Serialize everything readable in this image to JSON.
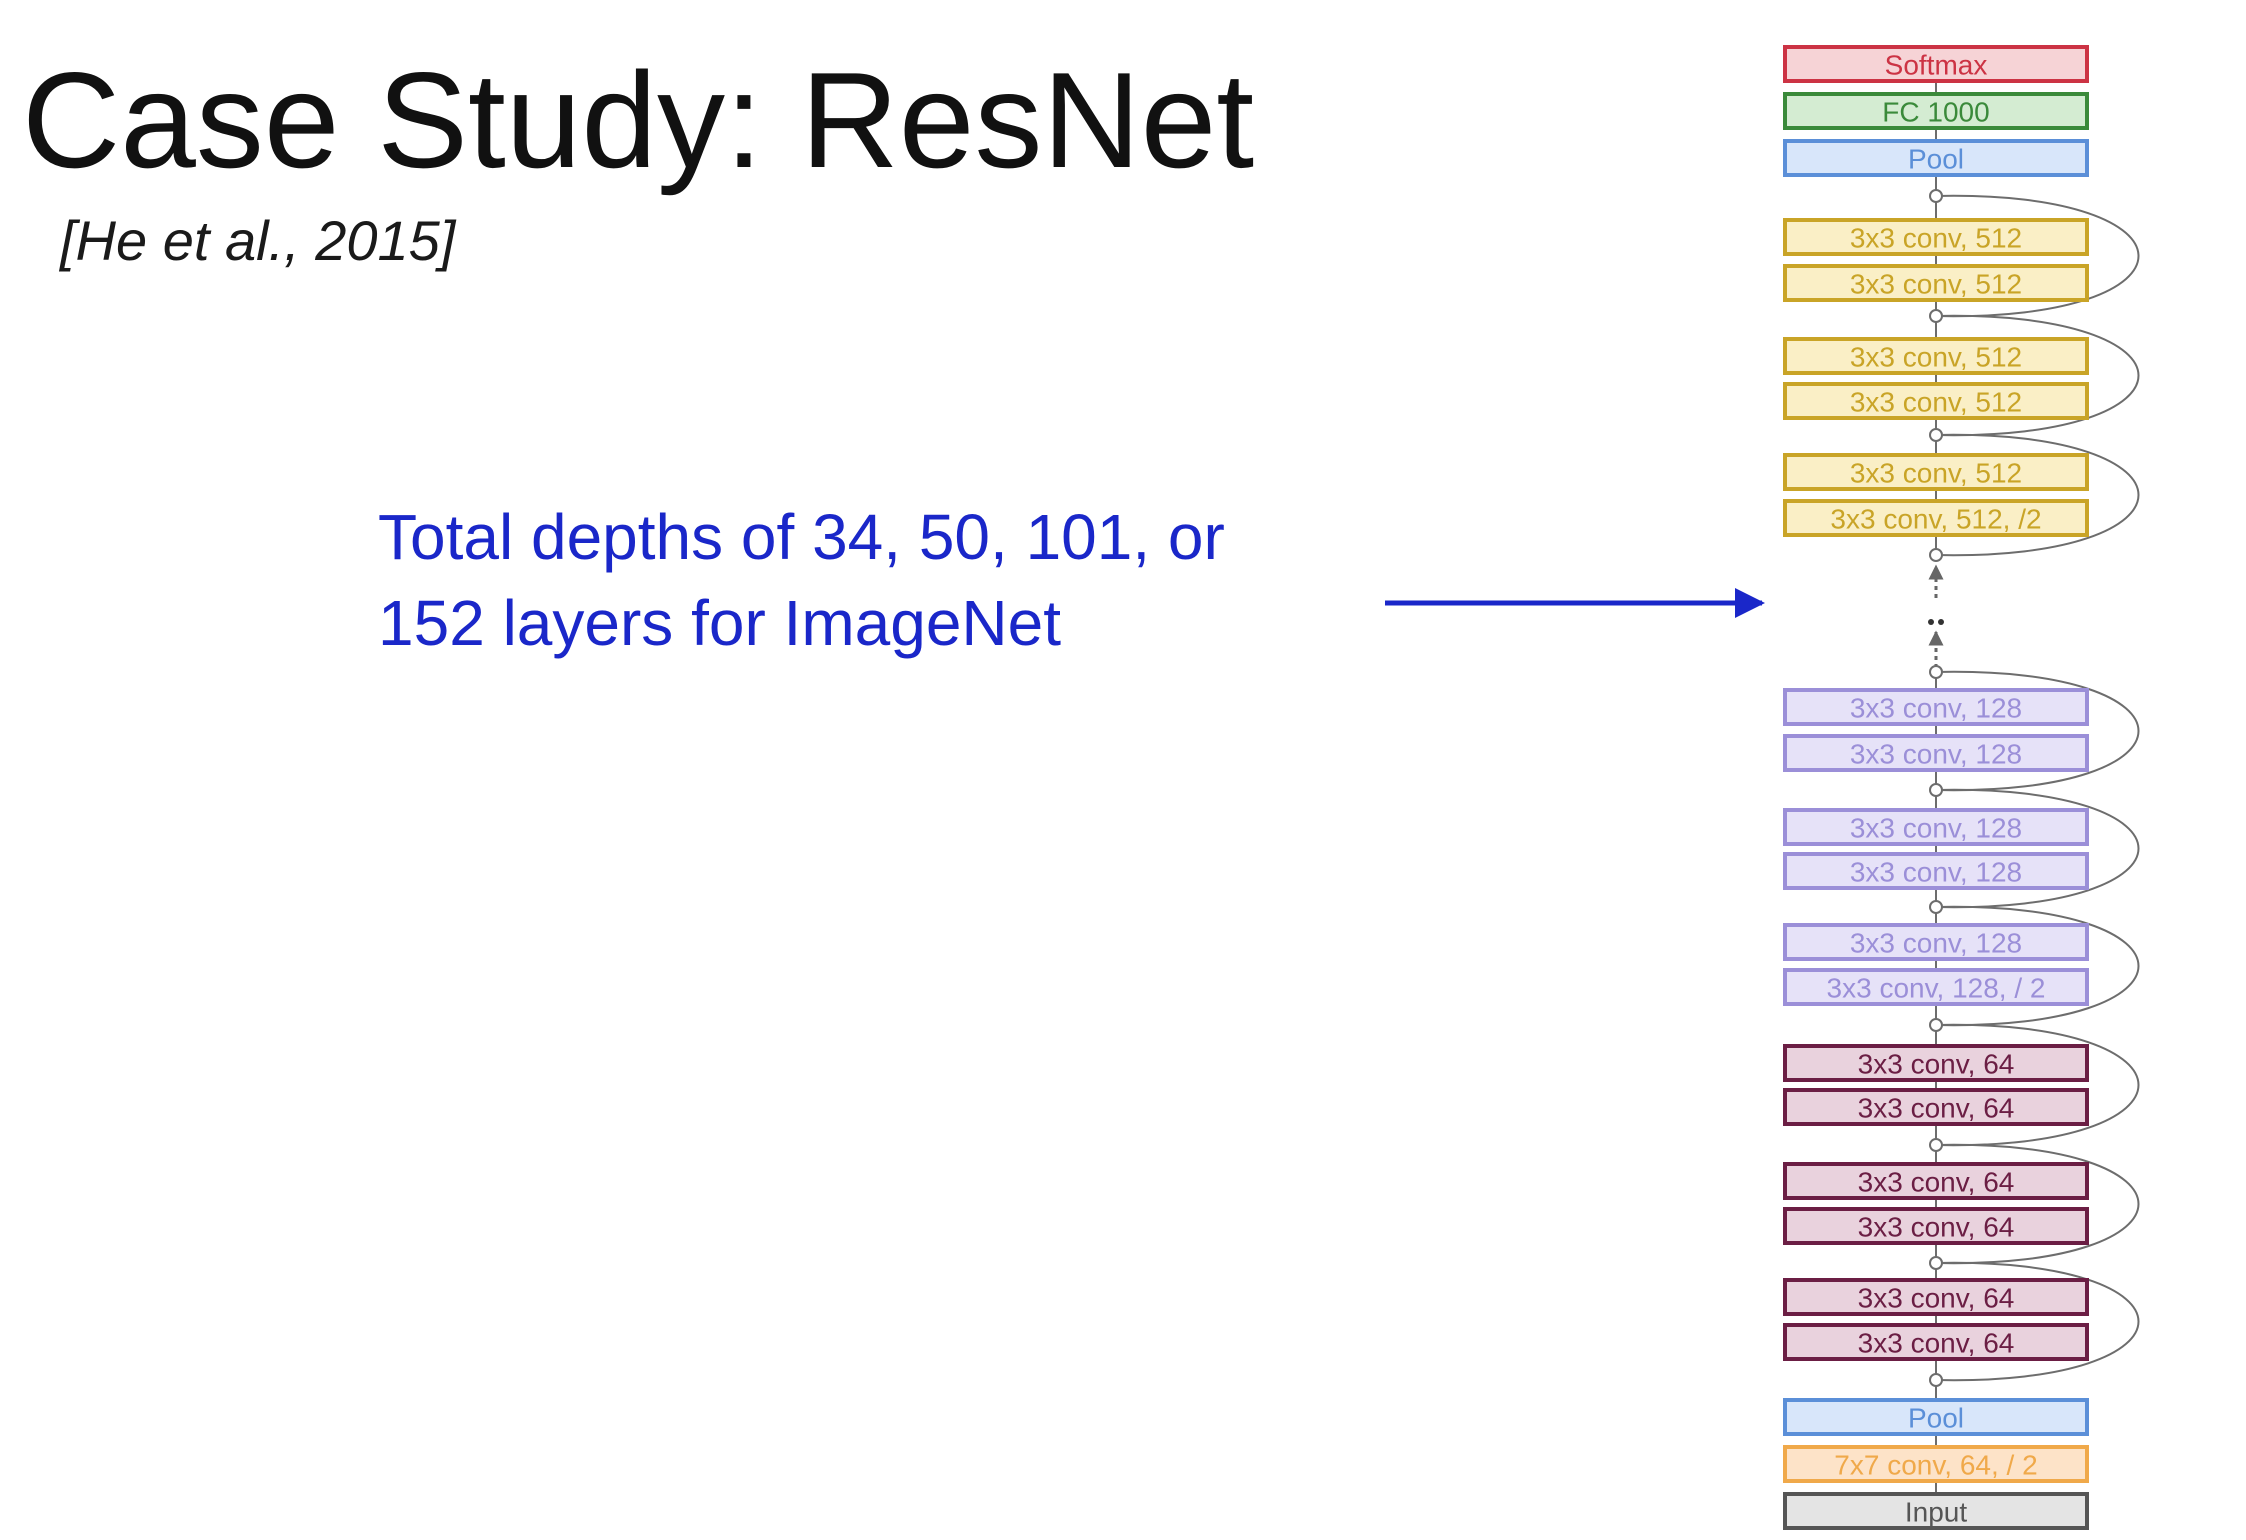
{
  "slide": {
    "title": "Case Study: ResNet",
    "citation": "[He et al., 2015]",
    "annotation_line1": "Total depths of 34, 50, 101, or",
    "annotation_line2": "152 layers for ImageNet"
  },
  "colors": {
    "annotation": "#1a27c9",
    "softmax": "#cc3344",
    "fc": "#3a8a3a",
    "pool": "#5b8fd8",
    "conv512": "#c9a427",
    "conv128": "#9b8fd8",
    "conv64": "#6b1e44",
    "conv7x7": "#f0a94a",
    "input": "#555555"
  },
  "layers": [
    {
      "label": "Softmax",
      "style": "softmax"
    },
    {
      "label": "FC 1000",
      "style": "fc"
    },
    {
      "label": "Pool",
      "style": "pool"
    },
    {
      "label": "3x3 conv, 512",
      "style": "conv512"
    },
    {
      "label": "3x3 conv, 512",
      "style": "conv512"
    },
    {
      "label": "3x3 conv, 512",
      "style": "conv512"
    },
    {
      "label": "3x3 conv, 512",
      "style": "conv512"
    },
    {
      "label": "3x3 conv, 512",
      "style": "conv512"
    },
    {
      "label": "3x3 conv, 512, /2",
      "style": "conv512"
    },
    {
      "label": "3x3 conv, 128",
      "style": "conv128"
    },
    {
      "label": "3x3 conv, 128",
      "style": "conv128"
    },
    {
      "label": "3x3 conv, 128",
      "style": "conv128"
    },
    {
      "label": "3x3 conv, 128",
      "style": "conv128"
    },
    {
      "label": "3x3 conv, 128",
      "style": "conv128"
    },
    {
      "label": "3x3 conv, 128, / 2",
      "style": "conv128"
    },
    {
      "label": "3x3 conv, 64",
      "style": "conv64"
    },
    {
      "label": "3x3 conv, 64",
      "style": "conv64"
    },
    {
      "label": "3x3 conv, 64",
      "style": "conv64"
    },
    {
      "label": "3x3 conv, 64",
      "style": "conv64"
    },
    {
      "label": "3x3 conv, 64",
      "style": "conv64"
    },
    {
      "label": "3x3 conv, 64",
      "style": "conv64"
    },
    {
      "label": "Pool",
      "style": "pool"
    },
    {
      "label": "7x7 conv, 64, / 2",
      "style": "conv7x7"
    },
    {
      "label": "Input",
      "style": "input"
    }
  ]
}
